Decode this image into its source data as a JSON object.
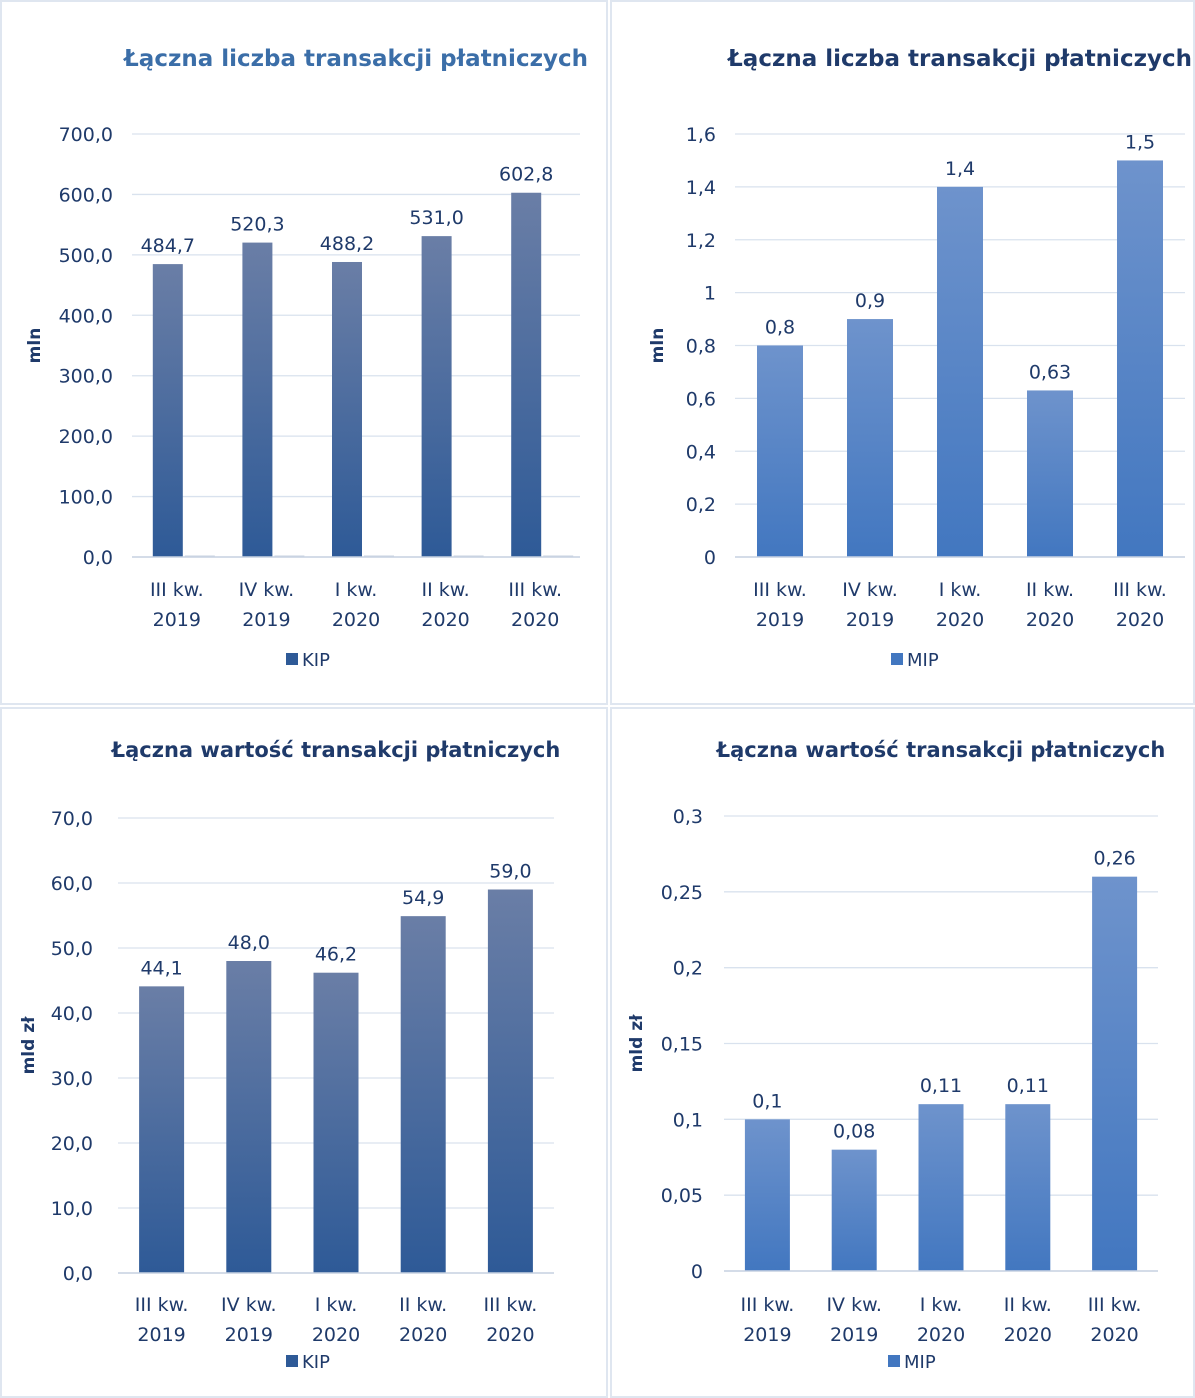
{
  "chart_data": [
    {
      "type": "bar",
      "title": "Łączna liczba transakcji płatniczych",
      "ylabel": "mln",
      "categories": [
        [
          "III kw.",
          "2019"
        ],
        [
          "IV kw.",
          "2019"
        ],
        [
          "I kw.",
          "2020"
        ],
        [
          "II kw.",
          "2020"
        ],
        [
          "III kw.",
          "2020"
        ]
      ],
      "series": [
        {
          "name": "KIP",
          "values": [
            484.7,
            520.3,
            488.2,
            531.0,
            602.8
          ],
          "data_labels": [
            "484,7",
            "520,3",
            "488,2",
            "531,0",
            "602,8"
          ]
        }
      ],
      "ylim": [
        0,
        700
      ],
      "yticks": [
        "0,0",
        "100,0",
        "200,0",
        "300,0",
        "400,0",
        "500,0",
        "600,0",
        "700,0"
      ],
      "legend_position": "bottom",
      "grid": true,
      "colors": {
        "bar_top": "#6a7ea6",
        "bar_bottom": "#2e5a97",
        "text": "#1f3a6a",
        "title": "#3b6ea8",
        "grid": "#d9e2ee"
      }
    },
    {
      "type": "bar",
      "title": "Łączna liczba transakcji płatniczych",
      "ylabel": "mln",
      "categories": [
        [
          "III kw.",
          "2019"
        ],
        [
          "IV kw.",
          "2019"
        ],
        [
          "I kw.",
          "2020"
        ],
        [
          "II kw.",
          "2020"
        ],
        [
          "III kw.",
          "2020"
        ]
      ],
      "series": [
        {
          "name": "MIP",
          "values": [
            0.8,
            0.9,
            1.4,
            0.63,
            1.5
          ],
          "data_labels": [
            "0,8",
            "0,9",
            "1,4",
            "0,63",
            "1,5"
          ]
        }
      ],
      "ylim": [
        0,
        1.6
      ],
      "yticks": [
        "0",
        "0,2",
        "0,4",
        "0,6",
        "0,8",
        "1",
        "1,2",
        "1,4",
        "1,6"
      ],
      "legend_position": "bottom",
      "grid": true,
      "colors": {
        "bar_top": "#6e93cc",
        "bar_bottom": "#4277c0",
        "text": "#1f3a6a",
        "title": "#1f3a6a",
        "grid": "#d9e2ee"
      }
    },
    {
      "type": "bar",
      "title": "Łączna wartość transakcji płatniczych",
      "ylabel": "mld zł",
      "categories": [
        [
          "III kw.",
          "2019"
        ],
        [
          "IV kw.",
          "2019"
        ],
        [
          "I kw.",
          "2020"
        ],
        [
          "II kw.",
          "2020"
        ],
        [
          "III kw.",
          "2020"
        ]
      ],
      "series": [
        {
          "name": "KIP",
          "values": [
            44.1,
            48.0,
            46.2,
            54.9,
            59.0
          ],
          "data_labels": [
            "44,1",
            "48,0",
            "46,2",
            "54,9",
            "59,0"
          ]
        }
      ],
      "ylim": [
        0,
        70
      ],
      "yticks": [
        "0,0",
        "10,0",
        "20,0",
        "30,0",
        "40,0",
        "50,0",
        "60,0",
        "70,0"
      ],
      "legend_position": "bottom",
      "grid": true,
      "colors": {
        "bar_top": "#6a7ea6",
        "bar_bottom": "#2e5a97",
        "text": "#1f3a6a",
        "title": "#1f3a6a",
        "grid": "#d9e2ee"
      }
    },
    {
      "type": "bar",
      "title": "Łączna wartość transakcji płatniczych",
      "ylabel": "mld zł",
      "categories": [
        [
          "III kw.",
          "2019"
        ],
        [
          "IV kw.",
          "2019"
        ],
        [
          "I kw.",
          "2020"
        ],
        [
          "II kw.",
          "2020"
        ],
        [
          "III kw.",
          "2020"
        ]
      ],
      "series": [
        {
          "name": "MIP",
          "values": [
            0.1,
            0.08,
            0.11,
            0.11,
            0.26
          ],
          "data_labels": [
            "0,1",
            "0,08",
            "0,11",
            "0,11",
            "0,26"
          ]
        }
      ],
      "ylim": [
        0,
        0.3
      ],
      "yticks": [
        "0",
        "0,05",
        "0,1",
        "0,15",
        "0,2",
        "0,25",
        "0,3"
      ],
      "legend_position": "bottom",
      "grid": true,
      "colors": {
        "bar_top": "#6e93cc",
        "bar_bottom": "#4277c0",
        "text": "#1f3a6a",
        "title": "#1f3a6a",
        "grid": "#d9e2ee"
      }
    }
  ]
}
